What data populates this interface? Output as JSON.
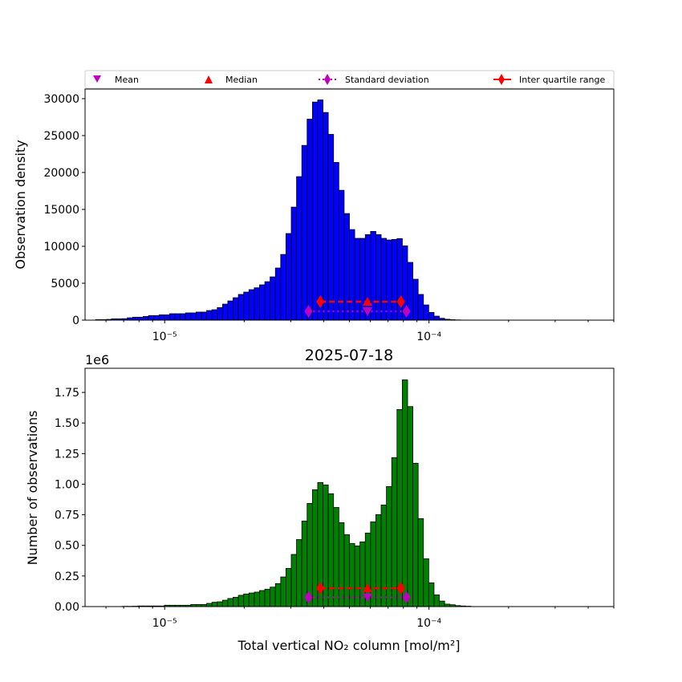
{
  "chart_data": [
    {
      "type": "bar",
      "subtype": "histogram",
      "x_scale": "log",
      "xlim": [
        5e-06,
        0.0005
      ],
      "bin_count": 100,
      "ylabel": "Observation density",
      "ylim": [
        0,
        31300
      ],
      "yticks": [
        0,
        5000,
        10000,
        15000,
        20000,
        25000,
        30000
      ],
      "ytick_labels": [
        "0",
        "5000",
        "10000",
        "15000",
        "20000",
        "25000",
        "30000"
      ],
      "xtick_labels": [
        "10⁻⁵",
        "10⁻⁴"
      ],
      "xticks": [
        1e-05,
        0.0001
      ],
      "bar_color": "#0000ff",
      "values": [
        0,
        0,
        70,
        70,
        100,
        180,
        180,
        200,
        320,
        400,
        400,
        500,
        620,
        620,
        720,
        720,
        870,
        870,
        870,
        980,
        980,
        1090,
        1090,
        1300,
        1410,
        1700,
        2170,
        2600,
        3040,
        3480,
        3800,
        4130,
        4380,
        4780,
        5210,
        5860,
        7060,
        8900,
        11730,
        15310,
        19440,
        23670,
        27220,
        29540,
        29830,
        28130,
        25160,
        21360,
        17590,
        14440,
        12270,
        11080,
        11080,
        11580,
        12020,
        11580,
        11080,
        10860,
        10930,
        11040,
        10060,
        7820,
        5540,
        3480,
        2060,
        1050,
        540,
        250,
        120,
        60,
        30,
        15,
        8,
        0,
        0,
        0,
        0,
        0,
        0,
        0,
        0,
        0,
        0,
        0,
        0,
        0,
        0,
        0,
        0,
        0,
        0,
        0,
        0,
        0,
        0,
        0,
        0,
        0,
        0,
        0
      ],
      "stats": {
        "mean": {
          "x": 5.85e-05,
          "y": 1200
        },
        "median": {
          "x": 5.85e-05,
          "y": 2500
        },
        "std_range": {
          "x": [
            3.5e-05,
            8.22e-05
          ],
          "y": 1200
        },
        "iqr_range": {
          "x": [
            3.88e-05,
            7.83e-05
          ],
          "y": 2500
        }
      }
    },
    {
      "type": "bar",
      "subtype": "histogram",
      "title": "2025-07-18",
      "x_scale": "log",
      "xlim": [
        5e-06,
        0.0005
      ],
      "bin_count": 100,
      "ylabel": "Number of observations",
      "xlabel": "Total vertical NO₂ column [mol/m²]",
      "offset_label": "1e6",
      "ylim": [
        0,
        1.947
      ],
      "yticks": [
        0,
        0.25,
        0.5,
        0.75,
        1.0,
        1.25,
        1.5,
        1.75
      ],
      "ytick_labels": [
        "0.00",
        "0.25",
        "0.50",
        "0.75",
        "1.00",
        "1.25",
        "1.50",
        "1.75"
      ],
      "xtick_labels": [
        "10⁻⁵",
        "10⁻⁴"
      ],
      "xticks": [
        1e-05,
        0.0001
      ],
      "bar_color": "#008000",
      "values": [
        0,
        0,
        0,
        0,
        0,
        0,
        0,
        0.002,
        0.002,
        0.003,
        0.005,
        0.005,
        0.005,
        0.005,
        0.005,
        0.011,
        0.011,
        0.011,
        0.011,
        0.011,
        0.017,
        0.017,
        0.017,
        0.026,
        0.035,
        0.039,
        0.052,
        0.066,
        0.076,
        0.092,
        0.103,
        0.111,
        0.118,
        0.131,
        0.142,
        0.159,
        0.188,
        0.242,
        0.312,
        0.426,
        0.548,
        0.699,
        0.843,
        0.955,
        1.014,
        0.994,
        0.922,
        0.81,
        0.686,
        0.588,
        0.516,
        0.496,
        0.529,
        0.601,
        0.692,
        0.751,
        0.83,
        0.981,
        1.217,
        1.61,
        1.852,
        1.634,
        1.171,
        0.719,
        0.391,
        0.194,
        0.096,
        0.045,
        0.02,
        0.015,
        0.008,
        0.005,
        0.003,
        0,
        0,
        0,
        0,
        0,
        0,
        0,
        0,
        0,
        0,
        0,
        0,
        0,
        0,
        0,
        0,
        0,
        0,
        0,
        0,
        0,
        0,
        0,
        0,
        0,
        0,
        0
      ],
      "stats": {
        "mean": {
          "x": 5.85e-05,
          "y": 0.075
        },
        "median": {
          "x": 5.85e-05,
          "y": 0.15
        },
        "std_range": {
          "x": [
            3.5e-05,
            8.22e-05
          ],
          "y": 0.075
        },
        "iqr_range": {
          "x": [
            3.88e-05,
            7.83e-05
          ],
          "y": 0.15
        }
      }
    }
  ],
  "legend": {
    "placement": "top",
    "entries": [
      {
        "label": "Mean",
        "marker": "down-triangle",
        "color": "#bf00bf"
      },
      {
        "label": "Median",
        "marker": "up-triangle",
        "color": "#ff0000"
      },
      {
        "label": "Standard deviation",
        "marker": "diamond-dotted-line",
        "color": "#bf00bf"
      },
      {
        "label": "Inter quartile range",
        "marker": "diamond-dashed-line",
        "color": "#ff0000"
      }
    ]
  }
}
